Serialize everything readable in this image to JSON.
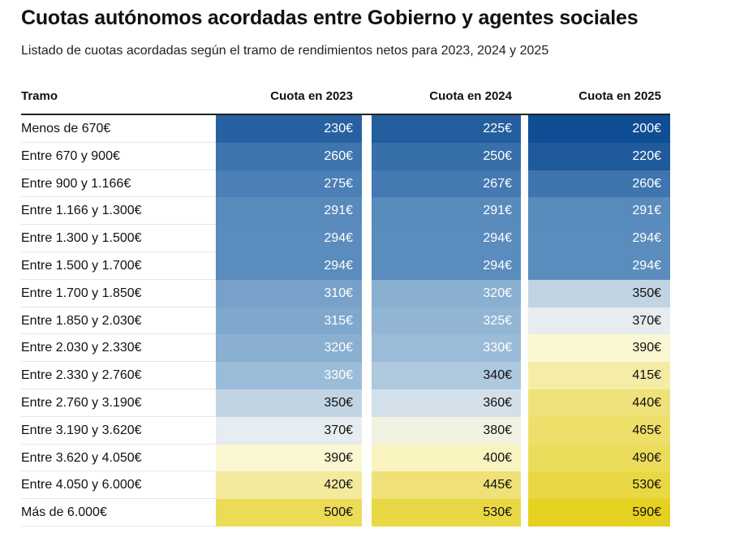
{
  "title": "Cuotas autónomos acordadas entre Gobierno y agentes sociales",
  "subtitle": "Listado de cuotas acordadas según el tramo de rendimientos netos para 2023, 2024 y 2025",
  "chart_data": {
    "type": "table",
    "columns": [
      "Tramo",
      "Cuota en 2023",
      "Cuota en 2024",
      "Cuota en 2025"
    ],
    "rows": [
      {
        "tramo": "Menos de 670€",
        "values": [
          "230€",
          "225€",
          "200€"
        ]
      },
      {
        "tramo": "Entre 670 y 900€",
        "values": [
          "260€",
          "250€",
          "220€"
        ]
      },
      {
        "tramo": "Entre 900 y 1.166€",
        "values": [
          "275€",
          "267€",
          "260€"
        ]
      },
      {
        "tramo": "Entre 1.166 y 1.300€",
        "values": [
          "291€",
          "291€",
          "291€"
        ]
      },
      {
        "tramo": "Entre 1.300 y 1.500€",
        "values": [
          "294€",
          "294€",
          "294€"
        ]
      },
      {
        "tramo": "Entre 1.500 y 1.700€",
        "values": [
          "294€",
          "294€",
          "294€"
        ]
      },
      {
        "tramo": "Entre 1.700 y 1.850€",
        "values": [
          "310€",
          "320€",
          "350€"
        ]
      },
      {
        "tramo": "Entre 1.850 y 2.030€",
        "values": [
          "315€",
          "325€",
          "370€"
        ]
      },
      {
        "tramo": "Entre 2.030 y 2.330€",
        "values": [
          "320€",
          "330€",
          "390€"
        ]
      },
      {
        "tramo": "Entre 2.330 y 2.760€",
        "values": [
          "330€",
          "340€",
          "415€"
        ]
      },
      {
        "tramo": "Entre 2.760 y 3.190€",
        "values": [
          "350€",
          "360€",
          "440€"
        ]
      },
      {
        "tramo": "Entre 3.190 y 3.620€",
        "values": [
          "370€",
          "380€",
          "465€"
        ]
      },
      {
        "tramo": "Entre 3.620 y 4.050€",
        "values": [
          "390€",
          "400€",
          "490€"
        ]
      },
      {
        "tramo": "Entre 4.050 y 6.000€",
        "values": [
          "420€",
          "445€",
          "530€"
        ]
      },
      {
        "tramo": "Más de 6.000€",
        "values": [
          "500€",
          "530€",
          "590€"
        ]
      }
    ],
    "color_scale": {
      "stops": [
        {
          "value": 200,
          "color": "#0f4d94"
        },
        {
          "value": 294,
          "color": "#5a8cbd"
        },
        {
          "value": 330,
          "color": "#9bbcd8"
        },
        {
          "value": 370,
          "color": "#e6ecef"
        },
        {
          "value": 390,
          "color": "#fbf7d2"
        },
        {
          "value": 440,
          "color": "#efe27a"
        },
        {
          "value": 590,
          "color": "#e6d020"
        }
      ],
      "dark_text_threshold": 340,
      "light_text_color": "#ffffff",
      "dark_text_color": "#111111"
    }
  }
}
